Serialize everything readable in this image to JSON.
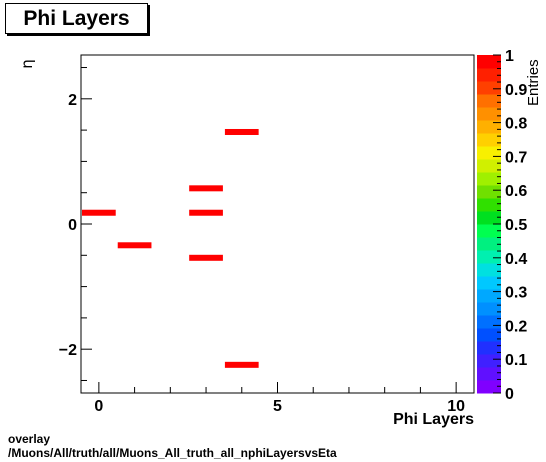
{
  "title": "Phi Layers",
  "footer": {
    "overlay": "overlay",
    "path": "/Muons/All/truth/all/Muons_All_truth_all_nphiLayersvsEta"
  },
  "chart_data": {
    "type": "heatmap",
    "title": "Phi Layers",
    "xlabel": "Phi Layers",
    "ylabel": "η",
    "zlabel": "Entries",
    "xlim": [
      -0.5,
      10.5
    ],
    "ylim": [
      -2.7,
      2.7
    ],
    "zlim": [
      0,
      1
    ],
    "xticks": [
      0,
      5,
      10
    ],
    "yticks": [
      -2,
      0,
      2
    ],
    "zticks": [
      0,
      0.1,
      0.2,
      0.3,
      0.4,
      0.5,
      0.6,
      0.7,
      0.8,
      0.9,
      1
    ],
    "cells": [
      {
        "x": 0,
        "y": 0.18,
        "value": 1
      },
      {
        "x": 1,
        "y": -0.34,
        "value": 1
      },
      {
        "x": 3,
        "y": 0.57,
        "value": 1
      },
      {
        "x": 3,
        "y": 0.18,
        "value": 1
      },
      {
        "x": 3,
        "y": -0.54,
        "value": 1
      },
      {
        "x": 4,
        "y": 1.47,
        "value": 1
      },
      {
        "x": 4,
        "y": -2.25,
        "value": 1
      }
    ],
    "palette": [
      "#8000ff",
      "#6010ff",
      "#4020ff",
      "#2030ff",
      "#0050ff",
      "#0070ff",
      "#0090ff",
      "#00a8ff",
      "#00c8ff",
      "#00e0e0",
      "#00f0b0",
      "#00f080",
      "#00ff50",
      "#00e020",
      "#30e000",
      "#70e000",
      "#a0f000",
      "#d0f000",
      "#f8f000",
      "#ffd000",
      "#ffb000",
      "#ff9000",
      "#ff7000",
      "#ff4000",
      "#ff2000",
      "#ff0000"
    ],
    "cell_color": "#ff0000",
    "grid": false
  }
}
